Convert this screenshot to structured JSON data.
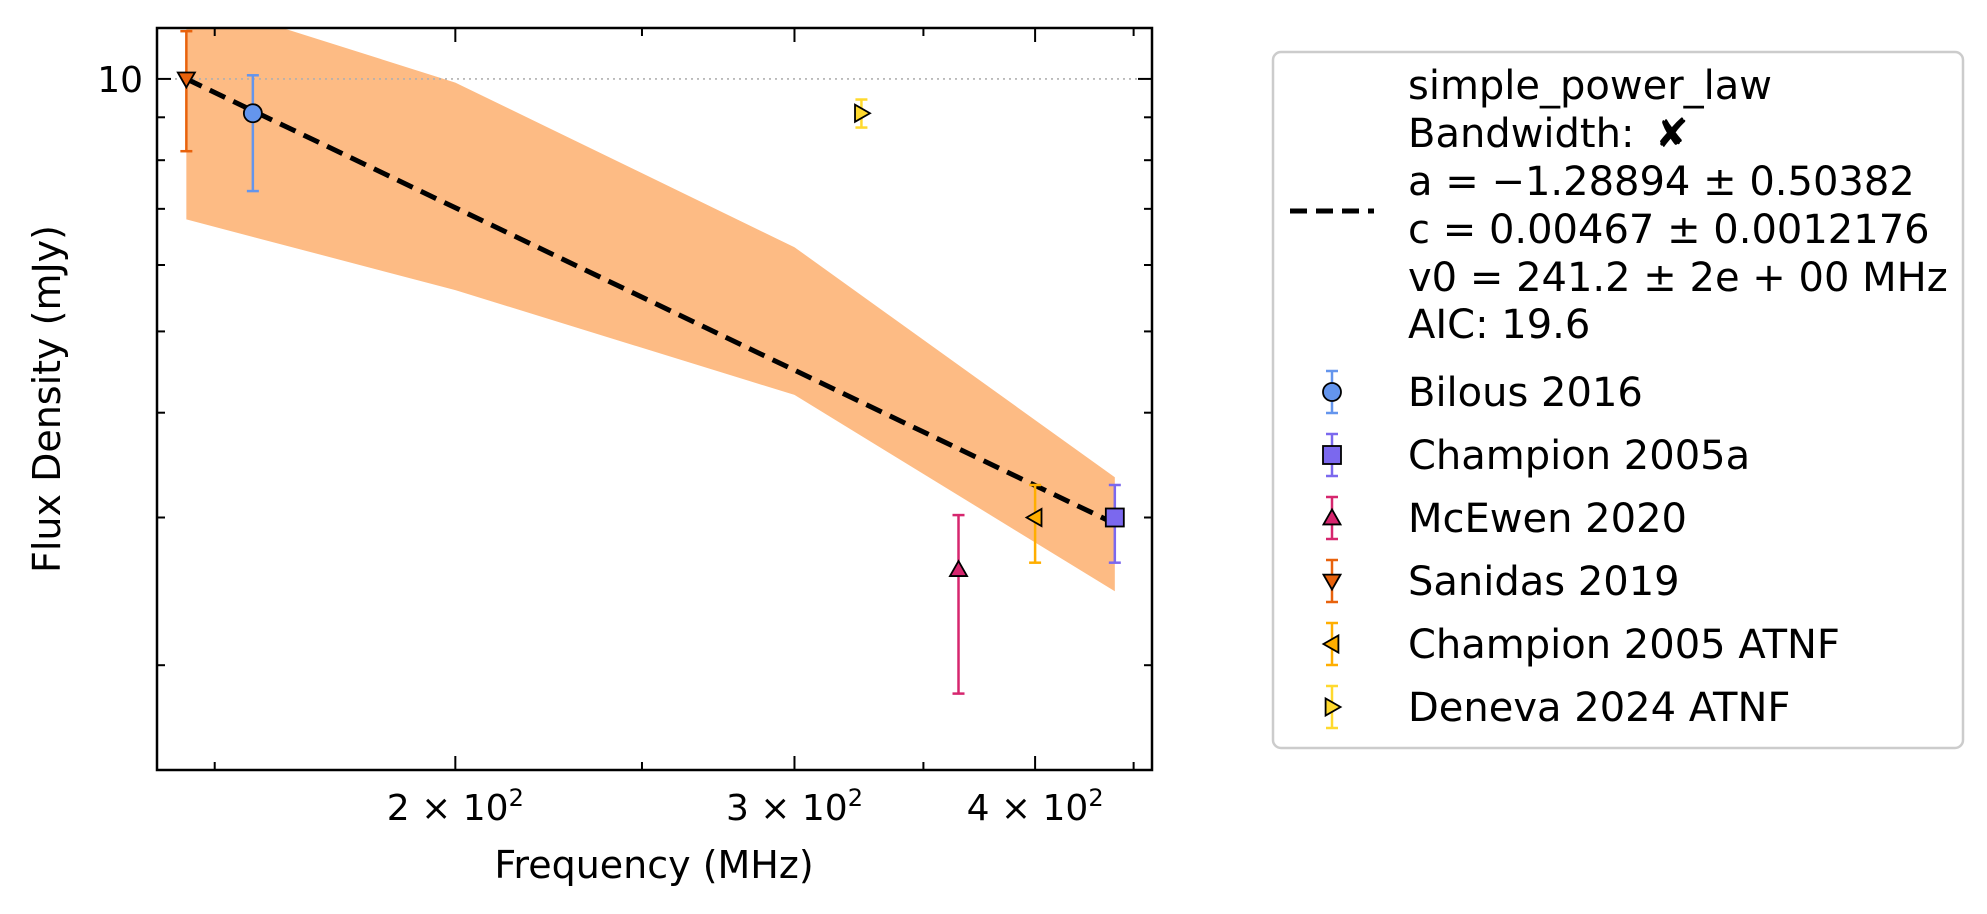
{
  "chart_data": {
    "type": "scatter",
    "title": "",
    "xlabel": "Frequency (MHz)",
    "ylabel": "Flux Density (mJy)",
    "xscale": "log",
    "yscale": "log",
    "xlim": [
      140,
      460
    ],
    "ylim": [
      1.5,
      11.5
    ],
    "grid": "horizontal dotted at 10",
    "legend_position": "right, outside plot",
    "x_ticks": [
      {
        "value": 200,
        "base": "2",
        "exp": "2"
      },
      {
        "value": 300,
        "base": "3",
        "exp": "2"
      },
      {
        "value": 400,
        "base": "4",
        "exp": "2"
      }
    ],
    "y_ticks": [
      {
        "value": 10,
        "label": "10"
      }
    ],
    "fit": {
      "name": "simple_power_law",
      "bandwidth_label": "Bandwidth:",
      "bandwidth_mark": "✘",
      "param_a": "a = −1.28894 ± 0.50382",
      "param_c": "c = 0.00467 ± 0.0012176",
      "param_v0": "v0 = 241.2 ± 2e + 00 MHz",
      "aic": "AIC: 19.6",
      "line": [
        [
          145,
          10.0
        ],
        [
          440,
          2.95
        ]
      ],
      "band_upper": [
        [
          145,
          12.5
        ],
        [
          200,
          9.9
        ],
        [
          300,
          6.3
        ],
        [
          440,
          3.35
        ]
      ],
      "band_lower": [
        [
          145,
          6.8
        ],
        [
          200,
          5.6
        ],
        [
          300,
          4.2
        ],
        [
          440,
          2.45
        ]
      ],
      "color": "#000000",
      "band_color": "#fdbb84"
    },
    "series": [
      {
        "name": "Bilous 2016",
        "marker": "circle",
        "color": "#6495ed",
        "points": [
          {
            "x": 157,
            "y": 9.1,
            "yerr_low": 1.75,
            "yerr_high": 1.0
          }
        ]
      },
      {
        "name": "Champion 2005a",
        "marker": "square",
        "color": "#7b68ee",
        "points": [
          {
            "x": 440,
            "y": 3.0,
            "yerr_low": 0.35,
            "yerr_high": 0.28
          }
        ]
      },
      {
        "name": "McEwen 2020",
        "marker": "triangle-up",
        "color": "#d6266e",
        "points": [
          {
            "x": 365,
            "y": 2.6,
            "yerr_low": 0.75,
            "yerr_high": 0.42
          }
        ]
      },
      {
        "name": "Sanidas 2019",
        "marker": "triangle-down",
        "color": "#e8620c",
        "points": [
          {
            "x": 145,
            "y": 10.0,
            "yerr_low": 1.8,
            "yerr_high": 1.4
          }
        ]
      },
      {
        "name": "Champion 2005 ATNF",
        "marker": "triangle-left",
        "color": "#ffae00",
        "points": [
          {
            "x": 400,
            "y": 3.0,
            "yerr_low": 0.35,
            "yerr_high": 0.28
          }
        ]
      },
      {
        "name": "Deneva 2024 ATNF",
        "marker": "triangle-right",
        "color": "#ffd92e",
        "points": [
          {
            "x": 325,
            "y": 9.1,
            "yerr_low": 0.35,
            "yerr_high": 0.35
          }
        ]
      }
    ]
  }
}
